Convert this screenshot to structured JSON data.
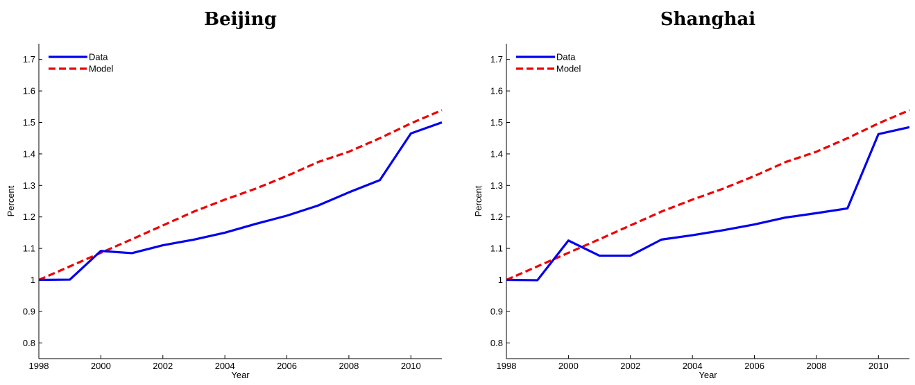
{
  "chart_data": [
    {
      "type": "line",
      "title": "Beijing",
      "xlabel": "Year",
      "ylabel": "Percent",
      "xlim": [
        1998,
        2011
      ],
      "ylim": [
        0.75,
        1.75
      ],
      "xticks": [
        1998,
        2000,
        2002,
        2004,
        2006,
        2008,
        2010
      ],
      "yticks": [
        0.8,
        0.9,
        1,
        1.1,
        1.2,
        1.3,
        1.4,
        1.5,
        1.6,
        1.7
      ],
      "x": [
        1998,
        1999,
        2000,
        2001,
        2002,
        2003,
        2004,
        2005,
        2006,
        2007,
        2008,
        2009,
        2010,
        2011
      ],
      "legend_position": "top-left",
      "grid": false,
      "series": [
        {
          "name": "Data",
          "color": "#0000ee",
          "style": "solid",
          "values": [
            1.0,
            1.001,
            1.092,
            1.085,
            1.11,
            1.128,
            1.15,
            1.178,
            1.204,
            1.236,
            1.278,
            1.317,
            1.465,
            1.5
          ]
        },
        {
          "name": "Model",
          "color": "#ee0000",
          "style": "dashed",
          "values": [
            1.0,
            1.043,
            1.086,
            1.129,
            1.173,
            1.217,
            1.255,
            1.29,
            1.33,
            1.374,
            1.407,
            1.45,
            1.497,
            1.539
          ]
        }
      ]
    },
    {
      "type": "line",
      "title": "Shanghai",
      "xlabel": "Year",
      "ylabel": "Percent",
      "xlim": [
        1998,
        2011
      ],
      "ylim": [
        0.75,
        1.75
      ],
      "xticks": [
        1998,
        2000,
        2002,
        2004,
        2006,
        2008,
        2010
      ],
      "yticks": [
        0.8,
        0.9,
        1,
        1.1,
        1.2,
        1.3,
        1.4,
        1.5,
        1.6,
        1.7
      ],
      "x": [
        1998,
        1999,
        2000,
        2001,
        2002,
        2003,
        2004,
        2005,
        2006,
        2007,
        2008,
        2009,
        2010,
        2011
      ],
      "legend_position": "top-left",
      "grid": false,
      "series": [
        {
          "name": "Data",
          "color": "#0000ee",
          "style": "solid",
          "values": [
            1.0,
            0.999,
            1.125,
            1.077,
            1.077,
            1.128,
            1.142,
            1.158,
            1.176,
            1.198,
            1.212,
            1.227,
            1.463,
            1.485
          ]
        },
        {
          "name": "Model",
          "color": "#ee0000",
          "style": "dashed",
          "values": [
            1.0,
            1.043,
            1.086,
            1.129,
            1.173,
            1.217,
            1.255,
            1.29,
            1.33,
            1.374,
            1.407,
            1.45,
            1.497,
            1.539
          ]
        }
      ]
    }
  ]
}
